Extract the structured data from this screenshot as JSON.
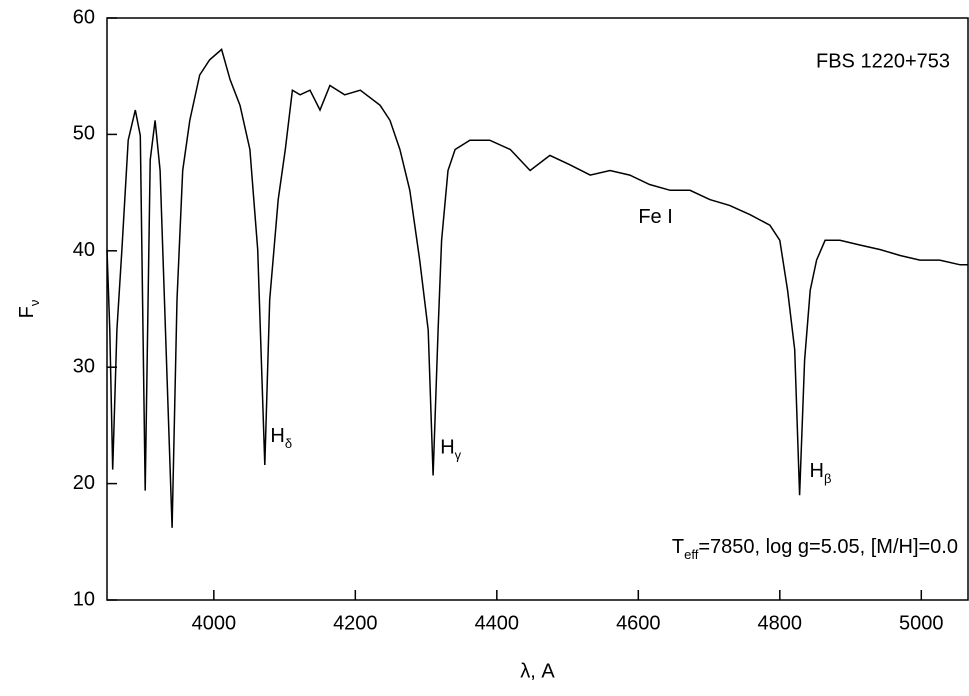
{
  "chart_data": {
    "type": "line",
    "title": "FBS 1220+753",
    "x_label": "λ, A",
    "y_label": {
      "main": "F",
      "sub": "ν"
    },
    "parameters": {
      "main": "T",
      "sub": "eff",
      "rest": "=7850, log g=5.05, [M/H]=0.0"
    },
    "annotations": [
      {
        "main": "H",
        "sub": "δ",
        "x": 4080,
        "y": 24
      },
      {
        "main": "H",
        "sub": "γ",
        "x": 4320,
        "y": 23
      },
      {
        "main": "H",
        "sub": "β",
        "x": 4842,
        "y": 21
      },
      {
        "main": "Fe I",
        "x": 4600,
        "y": 42.8
      }
    ],
    "xlim": [
      3849,
      5066
    ],
    "ylim": [
      10,
      60
    ],
    "xticks": [
      4000,
      4200,
      4400,
      4600,
      4800,
      5000
    ],
    "yticks": [
      10,
      20,
      30,
      40,
      50,
      60
    ],
    "series": [
      {
        "color": "#000000",
        "x": [
          3849,
          3853,
          3857,
          3863,
          3870,
          3879,
          3889,
          3896,
          3903,
          3910,
          3917,
          3924,
          3941,
          3948,
          3956,
          3966,
          3980,
          3994,
          4011,
          4023,
          4037,
          4051,
          4062,
          4072,
          4079,
          4091,
          4101,
          4111,
          4122,
          4136,
          4150,
          4164,
          4185,
          4207,
          4235,
          4249,
          4263,
          4277,
          4291,
          4303,
          4310,
          4317,
          4322,
          4331,
          4341,
          4362,
          4390,
          4419,
          4447,
          4475,
          4503,
          4532,
          4560,
          4588,
          4616,
          4645,
          4673,
          4701,
          4729,
          4758,
          4786,
          4800,
          4811,
          4821,
          4828,
          4835,
          4843,
          4852,
          4864,
          4885,
          4913,
          4942,
          4970,
          4998,
          5026,
          5055,
          5066
        ],
        "values": [
          40.1,
          33.2,
          21.2,
          33.2,
          40.1,
          49.5,
          52.1,
          49.9,
          19.4,
          47.8,
          51.2,
          46.9,
          16.2,
          35.8,
          46.9,
          51.2,
          55.1,
          56.4,
          57.3,
          54.7,
          52.5,
          48.7,
          40.1,
          21.6,
          35.8,
          44.4,
          48.7,
          53.8,
          53.4,
          53.8,
          52.1,
          54.2,
          53.4,
          53.8,
          52.5,
          51.2,
          48.7,
          45.2,
          39.2,
          33.2,
          20.7,
          33.2,
          40.9,
          46.9,
          48.7,
          49.5,
          49.5,
          48.7,
          46.9,
          48.2,
          47.4,
          46.5,
          46.9,
          46.5,
          45.7,
          45.2,
          45.2,
          44.4,
          43.9,
          43.1,
          42.2,
          40.9,
          36.6,
          31.5,
          19.0,
          30.6,
          36.6,
          39.2,
          40.9,
          40.9,
          40.5,
          40.1,
          39.6,
          39.2,
          39.2,
          38.8,
          38.8
        ]
      }
    ]
  }
}
